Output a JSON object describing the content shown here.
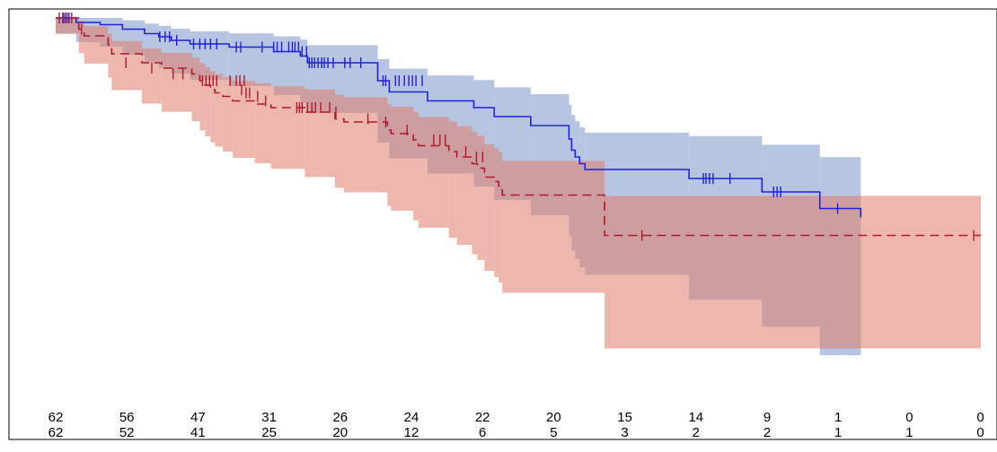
{
  "chart_data": {
    "type": "line",
    "subtype": "kaplan-meier survival curves with confidence bands and numbers-at-risk table",
    "title": "",
    "xlabel": "",
    "ylabel": "",
    "grid": false,
    "legend": "none",
    "xlim": [
      0,
      104
    ],
    "ylim": [
      0,
      1
    ],
    "series": [
      {
        "color": "#2020dd",
        "band_color": "#7a95c9",
        "line_style": "solid",
        "steps": [
          [
            0,
            1.0
          ],
          [
            2.3,
            0.99
          ],
          [
            5,
            0.985
          ],
          [
            7.5,
            0.975
          ],
          [
            10,
            0.965
          ],
          [
            11.6,
            0.958
          ],
          [
            13,
            0.95
          ],
          [
            15.1,
            0.942
          ],
          [
            19.5,
            0.935
          ],
          [
            24.5,
            0.925
          ],
          [
            27.5,
            0.915
          ],
          [
            28.3,
            0.9
          ],
          [
            36.2,
            0.86
          ],
          [
            37.5,
            0.835
          ],
          [
            41.8,
            0.815
          ],
          [
            47,
            0.8
          ],
          [
            49.3,
            0.78
          ],
          [
            53.4,
            0.76
          ],
          [
            57.7,
            0.73
          ],
          [
            58,
            0.705
          ],
          [
            58.4,
            0.69
          ],
          [
            58.9,
            0.675
          ],
          [
            59.5,
            0.662
          ],
          [
            71.2,
            0.642
          ],
          [
            79.4,
            0.612
          ],
          [
            85.9,
            0.575
          ],
          [
            90.5,
            0.555
          ]
        ],
        "end_x": 90.5,
        "censor_marks": [
          [
            0.8,
            1.0
          ],
          [
            1.1,
            1.0
          ],
          [
            1.5,
            1.0
          ],
          [
            11.7,
            0.958
          ],
          [
            12.3,
            0.958
          ],
          [
            12.8,
            0.958
          ],
          [
            13.6,
            0.95
          ],
          [
            15.5,
            0.942
          ],
          [
            16.2,
            0.942
          ],
          [
            16.8,
            0.942
          ],
          [
            17.4,
            0.942
          ],
          [
            18.1,
            0.942
          ],
          [
            20.3,
            0.935
          ],
          [
            20.8,
            0.935
          ],
          [
            23.2,
            0.935
          ],
          [
            24.5,
            0.935
          ],
          [
            24.9,
            0.935
          ],
          [
            25.4,
            0.935
          ],
          [
            26.2,
            0.935
          ],
          [
            26.6,
            0.935
          ],
          [
            26.9,
            0.935
          ],
          [
            27.3,
            0.935
          ],
          [
            27.7,
            0.925
          ],
          [
            28.2,
            0.925
          ],
          [
            28.5,
            0.9
          ],
          [
            28.8,
            0.9
          ],
          [
            29.1,
            0.9
          ],
          [
            29.5,
            0.9
          ],
          [
            29.9,
            0.9
          ],
          [
            30.2,
            0.9
          ],
          [
            30.6,
            0.9
          ],
          [
            31.2,
            0.9
          ],
          [
            32.5,
            0.9
          ],
          [
            33.1,
            0.9
          ],
          [
            34.3,
            0.9
          ],
          [
            36.8,
            0.86
          ],
          [
            37.1,
            0.86
          ],
          [
            38.2,
            0.86
          ],
          [
            38.6,
            0.86
          ],
          [
            39.2,
            0.86
          ],
          [
            39.7,
            0.86
          ],
          [
            40.1,
            0.86
          ],
          [
            40.5,
            0.86
          ],
          [
            41.2,
            0.86
          ],
          [
            72.8,
            0.642
          ],
          [
            73.1,
            0.642
          ],
          [
            73.5,
            0.642
          ],
          [
            73.9,
            0.642
          ],
          [
            75.8,
            0.642
          ],
          [
            80.7,
            0.612
          ],
          [
            81.1,
            0.612
          ],
          [
            81.5,
            0.612
          ],
          [
            87.9,
            0.575
          ]
        ]
      },
      {
        "color": "#b2182b",
        "band_color": "#e07b6c",
        "line_style": "dashed",
        "steps": [
          [
            0,
            1.0
          ],
          [
            2.6,
            0.975
          ],
          [
            3.2,
            0.96
          ],
          [
            5.9,
            0.94
          ],
          [
            6.3,
            0.92
          ],
          [
            9.7,
            0.9
          ],
          [
            11.9,
            0.888
          ],
          [
            15.3,
            0.875
          ],
          [
            16.2,
            0.86
          ],
          [
            16.8,
            0.85
          ],
          [
            17.4,
            0.84
          ],
          [
            17.9,
            0.833
          ],
          [
            18.8,
            0.825
          ],
          [
            19.9,
            0.815
          ],
          [
            22.4,
            0.808
          ],
          [
            24.2,
            0.8
          ],
          [
            28,
            0.79
          ],
          [
            31.4,
            0.775
          ],
          [
            32.4,
            0.768
          ],
          [
            37.3,
            0.75
          ],
          [
            37.7,
            0.742
          ],
          [
            40.2,
            0.728
          ],
          [
            40.8,
            0.715
          ],
          [
            44.2,
            0.702
          ],
          [
            45.1,
            0.69
          ],
          [
            46.8,
            0.675
          ],
          [
            47.4,
            0.665
          ],
          [
            48.2,
            0.645
          ],
          [
            49.3,
            0.635
          ],
          [
            49.8,
            0.625
          ],
          [
            50.2,
            0.605
          ],
          [
            61.7,
            0.515
          ]
        ],
        "end_x": 104,
        "censor_marks": [
          [
            0.4,
            1.0
          ],
          [
            0.9,
            1.0
          ],
          [
            1.3,
            1.0
          ],
          [
            1.8,
            1.0
          ],
          [
            2.9,
            0.975
          ],
          [
            7.9,
            0.9
          ],
          [
            10.8,
            0.888
          ],
          [
            13.2,
            0.875
          ],
          [
            14.3,
            0.875
          ],
          [
            16.5,
            0.86
          ],
          [
            16.9,
            0.86
          ],
          [
            17.3,
            0.86
          ],
          [
            17.7,
            0.86
          ],
          [
            18.1,
            0.86
          ],
          [
            19.6,
            0.86
          ],
          [
            20.3,
            0.86
          ],
          [
            20.7,
            0.86
          ],
          [
            21.2,
            0.86
          ],
          [
            20.9,
            0.84
          ],
          [
            21.4,
            0.833
          ],
          [
            21.8,
            0.833
          ],
          [
            22.7,
            0.825
          ],
          [
            23.6,
            0.815
          ],
          [
            27.1,
            0.8
          ],
          [
            27.4,
            0.8
          ],
          [
            27.7,
            0.8
          ],
          [
            28.3,
            0.8
          ],
          [
            28.8,
            0.8
          ],
          [
            29.2,
            0.8
          ],
          [
            29.8,
            0.8
          ],
          [
            30.8,
            0.8
          ],
          [
            31.5,
            0.79
          ],
          [
            35.1,
            0.775
          ],
          [
            37.1,
            0.768
          ],
          [
            39.5,
            0.75
          ],
          [
            42.5,
            0.728
          ],
          [
            43.2,
            0.728
          ],
          [
            43.8,
            0.728
          ],
          [
            46.1,
            0.702
          ],
          [
            47.3,
            0.69
          ],
          [
            48,
            0.69
          ],
          [
            65.9,
            0.515
          ],
          [
            103.2,
            0.515
          ]
        ]
      }
    ],
    "risk_table": {
      "columns": 14,
      "rows": [
        {
          "color": "#2020dd",
          "values": [
            "62",
            "56",
            "47",
            "31",
            "26",
            "24",
            "22",
            "20",
            "15",
            "14",
            "9",
            "1",
            "0",
            "0"
          ]
        },
        {
          "color": "#b2182b",
          "values": [
            "62",
            "52",
            "41",
            "25",
            "20",
            "12",
            "6",
            "5",
            "3",
            "2",
            "2",
            "1",
            "1",
            "0"
          ]
        }
      ]
    }
  }
}
